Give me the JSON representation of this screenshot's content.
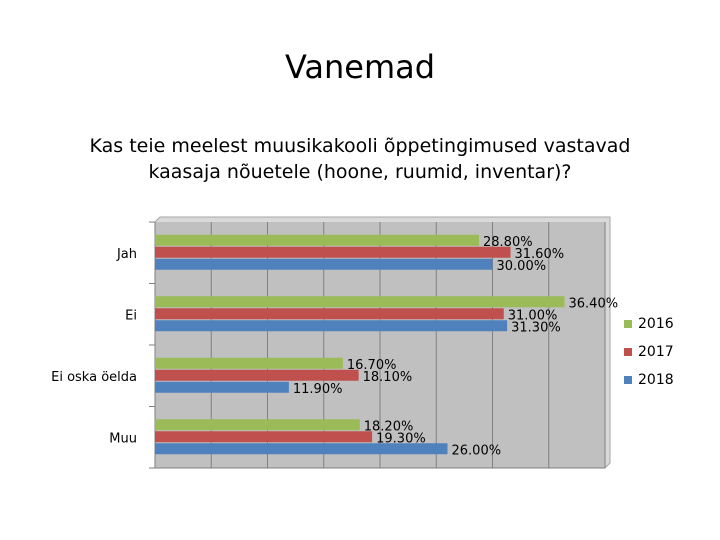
{
  "slide": {
    "title": "Vanemad"
  },
  "chart_data": {
    "type": "bar",
    "orientation": "horizontal",
    "title_lines": [
      "Kas teie meelest muusikakooli õppetingimused vastavad",
      "kaasaja nõuetele (hoone, ruumid, inventar)?"
    ],
    "categories": [
      "Jah",
      "Ei",
      "Ei oska öelda",
      "Muu"
    ],
    "series": [
      {
        "name": "2016",
        "color": "#9BBB59",
        "values": [
          28.8,
          36.4,
          16.7,
          18.2
        ],
        "labels": [
          "28.80%",
          "36.40%",
          "16.70%",
          "18.20%"
        ]
      },
      {
        "name": "2017",
        "color": "#C0504D",
        "values": [
          31.6,
          31.0,
          18.1,
          19.3
        ],
        "labels": [
          "31.60%",
          "31.00%",
          "18.10%",
          "19.30%"
        ]
      },
      {
        "name": "2018",
        "color": "#4F81BD",
        "values": [
          30.0,
          31.3,
          11.9,
          26.0
        ],
        "labels": [
          "30.00%",
          "31.30%",
          "11.90%",
          "26.00%"
        ]
      }
    ],
    "xlim": [
      0,
      40
    ],
    "grid": true,
    "legend_position": "right",
    "legend_order": [
      "2016",
      "2017",
      "2018"
    ],
    "colors": {
      "plot_background": "#C0C0C0",
      "gridline": "#808080"
    }
  }
}
